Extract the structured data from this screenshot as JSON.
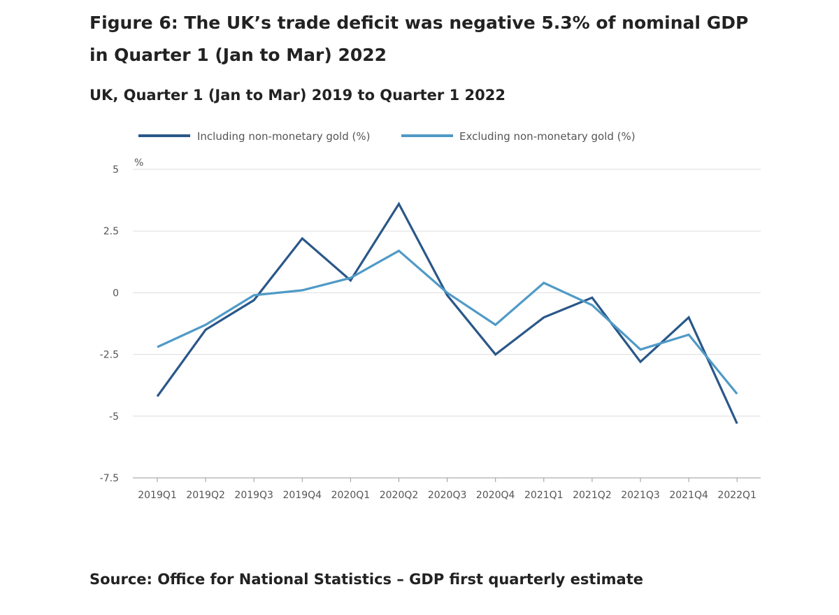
{
  "title_line_1": "Figure 6: The UK’s trade deficit was negative 5.3% of nominal GDP",
  "title_line_2": "in Quarter 1 (Jan to Mar) 2022",
  "subtitle": "UK, Quarter 1 (Jan to Mar) 2019 to Quarter 1 2022",
  "source": "Source: Office for National Statistics – GDP first quarterly estimate",
  "colors": {
    "including": "#2a5789",
    "excluding": "#4f9ac6",
    "grid": "#dddddd",
    "axis": "#999999"
  },
  "chart_data": {
    "type": "line",
    "y_unit": "%",
    "ylim": [
      -7.5,
      5
    ],
    "y_ticks": [
      5,
      2.5,
      0,
      -2.5,
      -5,
      -7.5
    ],
    "y_tick_labels": [
      "5",
      "2.5",
      "0",
      "-2.5",
      "-5",
      "-7.5"
    ],
    "grid": true,
    "legend_position": "top",
    "categories": [
      "2019Q1",
      "2019Q2",
      "2019Q3",
      "2019Q4",
      "2020Q1",
      "2020Q2",
      "2020Q3",
      "2020Q4",
      "2021Q1",
      "2021Q2",
      "2021Q3",
      "2021Q4",
      "2022Q1"
    ],
    "series": [
      {
        "name": "Including non-monetary gold (%)",
        "color_key": "including",
        "values": [
          -4.2,
          -1.5,
          -0.3,
          2.2,
          0.5,
          3.6,
          -0.1,
          -2.5,
          -1.0,
          -0.2,
          -2.8,
          -1.0,
          -5.3
        ]
      },
      {
        "name": "Excluding non-monetary gold (%)",
        "color_key": "excluding",
        "values": [
          -2.2,
          -1.3,
          -0.1,
          0.1,
          0.6,
          1.7,
          0.0,
          -1.3,
          0.4,
          -0.5,
          -2.3,
          -1.7,
          -4.1
        ]
      }
    ]
  }
}
